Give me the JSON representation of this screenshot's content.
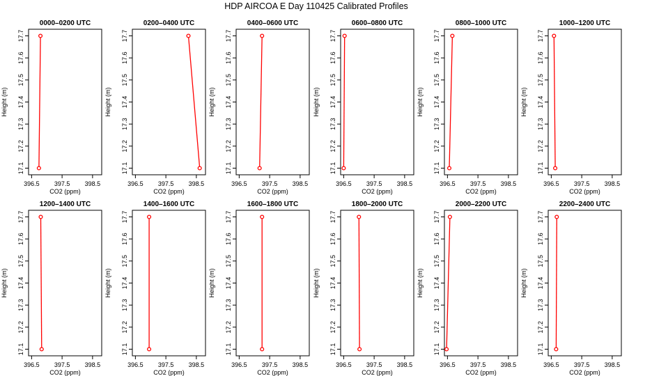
{
  "figure": {
    "title": "HDP AIRCOA E  Day 110425  Calibrated Profiles"
  },
  "colors": {
    "series": "#ff0000",
    "frame": "#000000",
    "background": "#ffffff"
  },
  "chart_data": [
    {
      "type": "line",
      "title": "0000–0200 UTC",
      "xlabel": "CO2 (ppm)",
      "ylabel": "Height (m)",
      "xlim": [
        396.4,
        398.8
      ],
      "ylim": [
        17.07,
        17.73
      ],
      "xticks": [
        "396.5",
        "397.5",
        "398.5"
      ],
      "yticks": [
        "17.1",
        "17.2",
        "17.3",
        "17.4",
        "17.5",
        "17.6",
        "17.7"
      ],
      "grid": false,
      "series": [
        {
          "x": [
            396.79,
            396.74
          ],
          "y": [
            17.7,
            17.1
          ]
        }
      ]
    },
    {
      "type": "line",
      "title": "0200–0400 UTC",
      "xlabel": "CO2 (ppm)",
      "ylabel": "Height (m)",
      "xlim": [
        396.4,
        398.8
      ],
      "ylim": [
        17.07,
        17.73
      ],
      "xticks": [
        "396.5",
        "397.5",
        "398.5"
      ],
      "yticks": [
        "17.1",
        "17.2",
        "17.3",
        "17.4",
        "17.5",
        "17.6",
        "17.7"
      ],
      "grid": false,
      "series": [
        {
          "x": [
            398.24,
            398.61
          ],
          "y": [
            17.7,
            17.1
          ]
        }
      ]
    },
    {
      "type": "line",
      "title": "0400–0600 UTC",
      "xlabel": "CO2 (ppm)",
      "ylabel": "Height (m)",
      "xlim": [
        396.4,
        398.8
      ],
      "ylim": [
        17.07,
        17.73
      ],
      "xticks": [
        "396.5",
        "397.5",
        "398.5"
      ],
      "yticks": [
        "17.1",
        "17.2",
        "17.3",
        "17.4",
        "17.5",
        "17.6",
        "17.7"
      ],
      "grid": false,
      "series": [
        {
          "x": [
            397.25,
            397.17
          ],
          "y": [
            17.7,
            17.1
          ]
        }
      ]
    },
    {
      "type": "line",
      "title": "0600–0800 UTC",
      "xlabel": "CO2 (ppm)",
      "ylabel": "Height (m)",
      "xlim": [
        396.4,
        398.8
      ],
      "ylim": [
        17.07,
        17.73
      ],
      "xticks": [
        "396.5",
        "397.5",
        "398.5"
      ],
      "yticks": [
        "17.1",
        "17.2",
        "17.3",
        "17.4",
        "17.5",
        "17.6",
        "17.7"
      ],
      "grid": false,
      "series": [
        {
          "x": [
            396.53,
            396.5
          ],
          "y": [
            17.7,
            17.1
          ]
        }
      ]
    },
    {
      "type": "line",
      "title": "0800–1000 UTC",
      "xlabel": "CO2 (ppm)",
      "ylabel": "Height (m)",
      "xlim": [
        396.4,
        398.8
      ],
      "ylim": [
        17.07,
        17.73
      ],
      "xticks": [
        "396.5",
        "397.5",
        "398.5"
      ],
      "yticks": [
        "17.1",
        "17.2",
        "17.3",
        "17.4",
        "17.5",
        "17.6",
        "17.7"
      ],
      "grid": false,
      "series": [
        {
          "x": [
            396.66,
            396.56
          ],
          "y": [
            17.7,
            17.1
          ]
        }
      ]
    },
    {
      "type": "line",
      "title": "1000–1200 UTC",
      "xlabel": "CO2 (ppm)",
      "ylabel": "Height (m)",
      "xlim": [
        396.4,
        398.8
      ],
      "ylim": [
        17.07,
        17.73
      ],
      "xticks": [
        "396.5",
        "397.5",
        "398.5"
      ],
      "yticks": [
        "17.1",
        "17.2",
        "17.3",
        "17.4",
        "17.5",
        "17.6",
        "17.7"
      ],
      "grid": false,
      "series": [
        {
          "x": [
            396.59,
            396.63
          ],
          "y": [
            17.7,
            17.1
          ]
        }
      ]
    },
    {
      "type": "line",
      "title": "1200–1400 UTC",
      "xlabel": "CO2 (ppm)",
      "ylabel": "Height (m)",
      "xlim": [
        396.4,
        398.8
      ],
      "ylim": [
        17.07,
        17.73
      ],
      "xticks": [
        "396.5",
        "397.5",
        "398.5"
      ],
      "yticks": [
        "17.1",
        "17.2",
        "17.3",
        "17.4",
        "17.5",
        "17.6",
        "17.7"
      ],
      "grid": false,
      "series": [
        {
          "x": [
            396.8,
            396.83
          ],
          "y": [
            17.7,
            17.1
          ]
        }
      ]
    },
    {
      "type": "line",
      "title": "1400–1600 UTC",
      "xlabel": "CO2 (ppm)",
      "ylabel": "Height (m)",
      "xlim": [
        396.4,
        398.8
      ],
      "ylim": [
        17.07,
        17.73
      ],
      "xticks": [
        "396.5",
        "397.5",
        "398.5"
      ],
      "yticks": [
        "17.1",
        "17.2",
        "17.3",
        "17.4",
        "17.5",
        "17.6",
        "17.7"
      ],
      "grid": false,
      "series": [
        {
          "x": [
            396.95,
            396.95
          ],
          "y": [
            17.7,
            17.1
          ]
        }
      ]
    },
    {
      "type": "line",
      "title": "1600–1800 UTC",
      "xlabel": "CO2 (ppm)",
      "ylabel": "Height (m)",
      "xlim": [
        396.4,
        398.8
      ],
      "ylim": [
        17.07,
        17.73
      ],
      "xticks": [
        "396.5",
        "397.5",
        "398.5"
      ],
      "yticks": [
        "17.1",
        "17.2",
        "17.3",
        "17.4",
        "17.5",
        "17.6",
        "17.7"
      ],
      "grid": false,
      "series": [
        {
          "x": [
            397.25,
            397.25
          ],
          "y": [
            17.7,
            17.1
          ]
        }
      ]
    },
    {
      "type": "line",
      "title": "1800–2000 UTC",
      "xlabel": "CO2 (ppm)",
      "ylabel": "Height (m)",
      "xlim": [
        396.4,
        398.8
      ],
      "ylim": [
        17.07,
        17.73
      ],
      "xticks": [
        "396.5",
        "397.5",
        "398.5"
      ],
      "yticks": [
        "17.1",
        "17.2",
        "17.3",
        "17.4",
        "17.5",
        "17.6",
        "17.7"
      ],
      "grid": false,
      "series": [
        {
          "x": [
            397.0,
            397.02
          ],
          "y": [
            17.7,
            17.1
          ]
        }
      ]
    },
    {
      "type": "line",
      "title": "2000–2200 UTC",
      "xlabel": "CO2 (ppm)",
      "ylabel": "Height (m)",
      "xlim": [
        396.4,
        398.8
      ],
      "ylim": [
        17.07,
        17.73
      ],
      "xticks": [
        "396.5",
        "397.5",
        "398.5"
      ],
      "yticks": [
        "17.1",
        "17.2",
        "17.3",
        "17.4",
        "17.5",
        "17.6",
        "17.7"
      ],
      "grid": false,
      "series": [
        {
          "x": [
            396.58,
            396.47
          ],
          "y": [
            17.7,
            17.1
          ]
        }
      ]
    },
    {
      "type": "line",
      "title": "2200–2400 UTC",
      "xlabel": "CO2 (ppm)",
      "ylabel": "Height (m)",
      "xlim": [
        396.4,
        398.8
      ],
      "ylim": [
        17.07,
        17.73
      ],
      "xticks": [
        "396.5",
        "397.5",
        "398.5"
      ],
      "yticks": [
        "17.1",
        "17.2",
        "17.3",
        "17.4",
        "17.5",
        "17.6",
        "17.7"
      ],
      "grid": false,
      "series": [
        {
          "x": [
            396.68,
            396.66
          ],
          "y": [
            17.7,
            17.1
          ]
        }
      ]
    }
  ]
}
